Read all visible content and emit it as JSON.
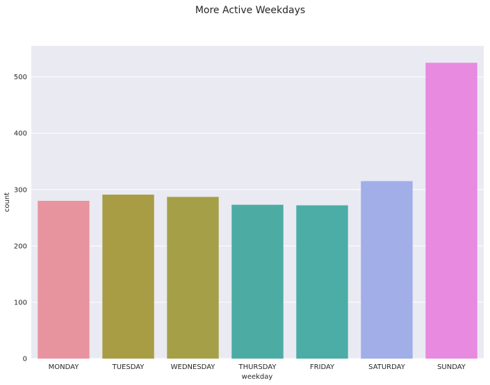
{
  "chart_data": {
    "type": "bar",
    "title": "More Active Weekdays",
    "xlabel": "weekday",
    "ylabel": "count",
    "categories": [
      "MONDAY",
      "TUESDAY",
      "WEDNESDAY",
      "THURSDAY",
      "FRIDAY",
      "SATURDAY",
      "SUNDAY"
    ],
    "values": [
      280,
      291,
      287,
      273,
      272,
      315,
      525
    ],
    "colors": [
      "#e8949f",
      "#a89c45",
      "#a5a048",
      "#4caca3",
      "#4bada6",
      "#a1aee8",
      "#e88ae0"
    ],
    "ylim": [
      0,
      555
    ],
    "yticks": [
      0,
      100,
      200,
      300,
      400,
      500
    ],
    "grid": true,
    "background": "#eaeaf2"
  }
}
